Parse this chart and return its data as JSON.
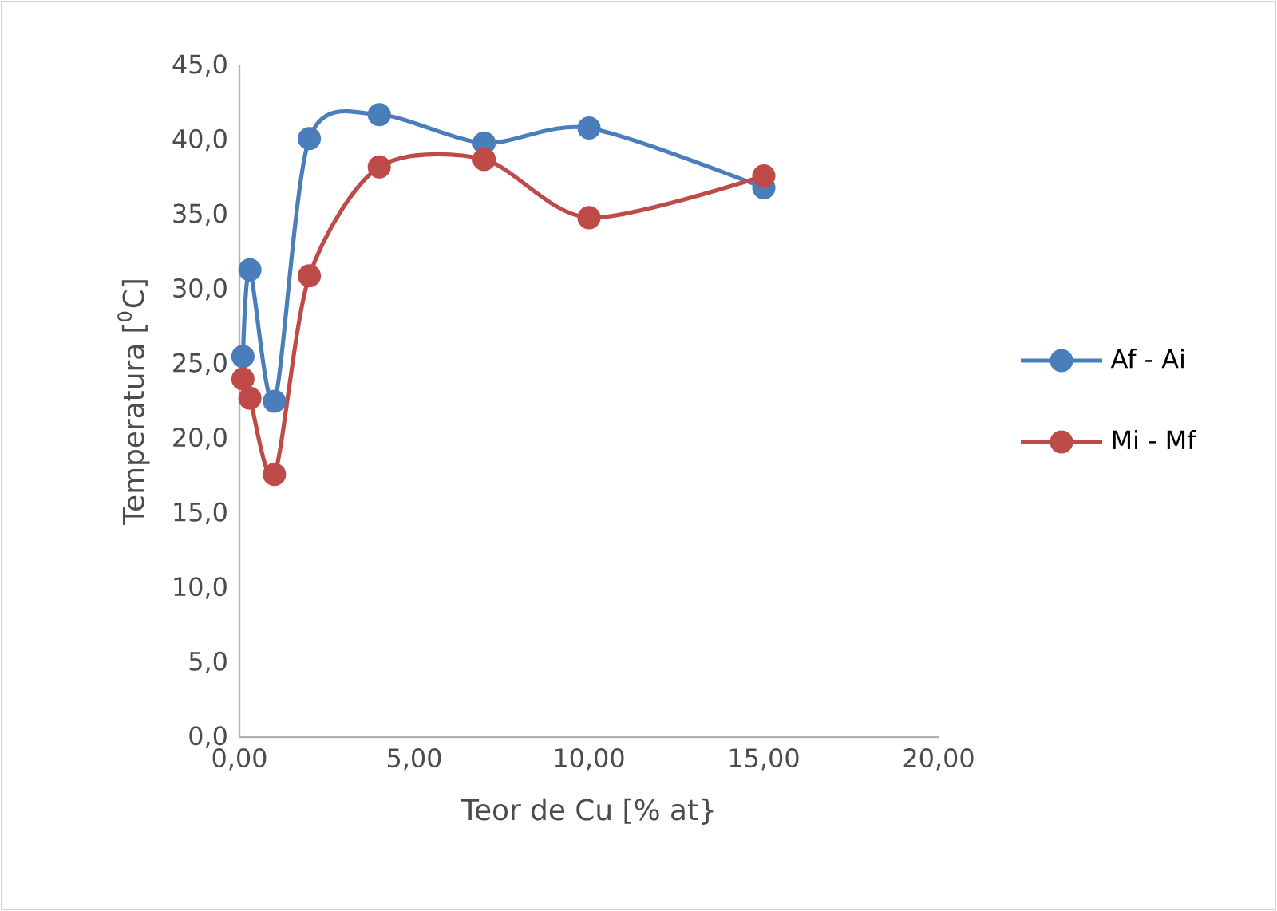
{
  "chart_data": {
    "type": "line",
    "xlabel": "Teor de Cu [% at}",
    "ylabel": "Temperatura [$^{0}$C]",
    "series": [
      {
        "name": "Af - Ai",
        "color": "#4a7ebb",
        "x": [
          0.1,
          0.3,
          1,
          2,
          4,
          7,
          10,
          15
        ],
        "values": [
          25.5,
          31.3,
          22.5,
          40.1,
          41.7,
          39.8,
          40.8,
          36.8
        ]
      },
      {
        "name": "Mi - Mf",
        "color": "#be4b48",
        "x": [
          0.1,
          0.3,
          1,
          2,
          4,
          7,
          10,
          15
        ],
        "values": [
          24.0,
          22.7,
          17.6,
          30.9,
          38.2,
          38.7,
          34.8,
          37.6
        ]
      }
    ],
    "xlim": [
      0,
      20
    ],
    "ylim": [
      0,
      45
    ],
    "xticks": [
      {
        "value": 0,
        "label": "0,00"
      },
      {
        "value": 5,
        "label": "5,00"
      },
      {
        "value": 10,
        "label": "10,00"
      },
      {
        "value": 15,
        "label": "15,00"
      },
      {
        "value": 20,
        "label": "20,00"
      }
    ],
    "yticks": [
      {
        "value": 0,
        "label": "0,0"
      },
      {
        "value": 5,
        "label": "5,0"
      },
      {
        "value": 10,
        "label": "10,0"
      },
      {
        "value": 15,
        "label": "15,0"
      },
      {
        "value": 20,
        "label": "20,0"
      },
      {
        "value": 25,
        "label": "25,0"
      },
      {
        "value": 30,
        "label": "30,0"
      },
      {
        "value": 35,
        "label": "35,0"
      },
      {
        "value": 40,
        "label": "40,0"
      },
      {
        "value": 45,
        "label": "45,0"
      }
    ],
    "legend": "right",
    "marker": "circle",
    "line_style": "solid",
    "grid": false
  }
}
